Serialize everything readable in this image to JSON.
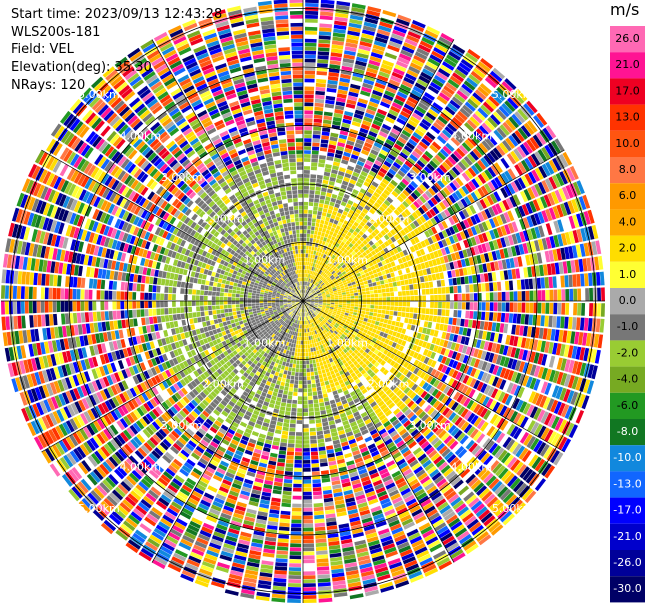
{
  "info": {
    "start_time": "Start time: 2023/09/13 12:43:28",
    "instrument": "WLS200s-181",
    "field": "Field: VEL",
    "elevation": "Elevation(deg): 35.30",
    "nrays": "NRays: 120"
  },
  "colorbar": {
    "unit": "m/s",
    "levels": [
      "26.0",
      "21.0",
      "17.0",
      "13.0",
      "10.0",
      "8.0",
      "6.0",
      "4.0",
      "2.0",
      "1.0",
      "0.0",
      "-1.0",
      "-2.0",
      "-4.0",
      "-6.0",
      "-8.0",
      "-10.0",
      "-13.0",
      "-17.0",
      "-21.0",
      "-26.0",
      "-30.0"
    ],
    "colors": [
      "#ff69b4",
      "#ff1493",
      "#ee0022",
      "#ff3300",
      "#ff5511",
      "#ff7744",
      "#ff9900",
      "#ffaa00",
      "#ffdd00",
      "#ffff33",
      "#aaaaaa",
      "#777777",
      "#99cc33",
      "#77aa22",
      "#229922",
      "#117722",
      "#1188dd",
      "#1166ff",
      "#0000ff",
      "#0000cc",
      "#000099",
      "#000066"
    ]
  },
  "chart_data": {
    "type": "heatmap",
    "projection": "polar PPI",
    "field": "VEL",
    "unit": "m/s",
    "nrays": 120,
    "range_rings_km": [
      1.0,
      2.0,
      3.0,
      4.0,
      5.0
    ],
    "range_labels": [
      "1.00km",
      "2.00km",
      "3.00km",
      "4.00km",
      "5.00km"
    ],
    "radial_pattern": [
      {
        "range_km": [
          0.0,
          0.3
        ],
        "dominant_values_ms": [
          -1.0,
          0.0,
          1.0
        ]
      },
      {
        "range_km": [
          0.3,
          1.0
        ],
        "dominant_values_ms": [
          2.0,
          -1.0,
          -2.0
        ]
      },
      {
        "range_km": [
          1.0,
          1.7
        ],
        "dominant_values_ms": [
          2.0,
          1.0,
          -1.0,
          -2.0
        ]
      },
      {
        "range_km": [
          1.7,
          2.5
        ],
        "dominant_values_ms": [
          -2.0,
          -1.0,
          2.0
        ]
      },
      {
        "range_km": [
          2.5,
          4.0
        ],
        "dominant_values_ms": "noise (full colour range)"
      }
    ]
  }
}
